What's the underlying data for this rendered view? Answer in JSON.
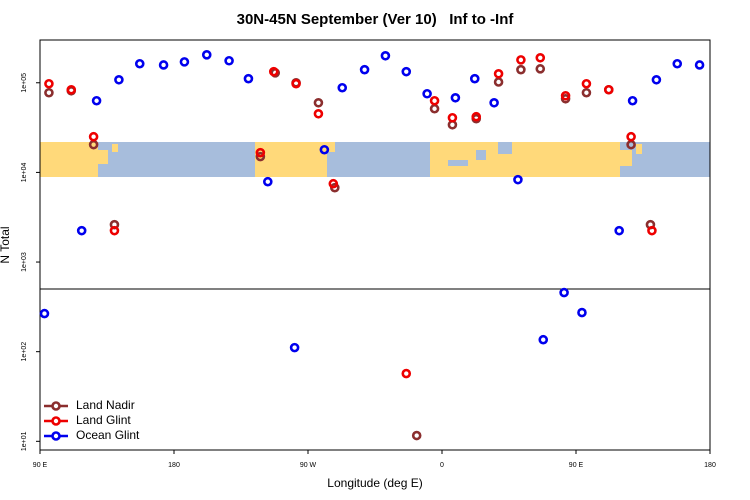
{
  "chart_data": {
    "type": "scatter",
    "title": "30N-45N September (Ver 10)   Inf to -Inf",
    "x_label": "Longitude (deg E)",
    "y_label": "N Total",
    "log_y": true,
    "legend": "lower left",
    "hline": 500,
    "xlim": [
      90,
      540
    ],
    "xticks": [
      {
        "value": 90,
        "label": "90 E"
      },
      {
        "value": 180,
        "label": "180"
      },
      {
        "value": 270,
        "label": "90 W"
      },
      {
        "value": 360,
        "label": "0"
      },
      {
        "value": 450,
        "label": "90 E"
      },
      {
        "value": 540,
        "label": "180"
      }
    ],
    "ylim": [
      8,
      300000
    ],
    "yticks": [
      {
        "value": 10,
        "label": "1e+01"
      },
      {
        "value": 100,
        "label": "1e+02"
      },
      {
        "value": 1000,
        "label": "1e+03"
      },
      {
        "value": 10000,
        "label": "1e+04"
      },
      {
        "value": 100000,
        "label": "1e+05"
      }
    ],
    "series": [
      {
        "name": "Land Nadir",
        "color": "#8b2e2e",
        "x": [
          96,
          111,
          126,
          140,
          238,
          248,
          262,
          277,
          288,
          343,
          355,
          367,
          383,
          398,
          413,
          426,
          443,
          457,
          472,
          487,
          500
        ],
        "values": [
          77400,
          81400,
          20400,
          2610,
          15000,
          129000,
          100000,
          59800,
          6750,
          11.6,
          51300,
          34000,
          39700,
          102000,
          140000,
          143000,
          66300,
          77400,
          83600,
          20400,
          2610
        ]
      },
      {
        "name": "Land Glint",
        "color": "#ee0000",
        "x": [
          96,
          111,
          126,
          140,
          238,
          247,
          262,
          277,
          287,
          336,
          355,
          367,
          383,
          398,
          413,
          426,
          443,
          457,
          472,
          487,
          501
        ],
        "values": [
          97500,
          83600,
          25000,
          2240,
          16600,
          133000,
          97500,
          45100,
          7480,
          57,
          63000,
          40700,
          41800,
          126000,
          180000,
          190000,
          71600,
          97500,
          83600,
          25000,
          2240
        ]
      },
      {
        "name": "Ocean Glint",
        "color": "#0000ee",
        "x": [
          93,
          118,
          128,
          143,
          157,
          173,
          187,
          202,
          217,
          230,
          243,
          261,
          281,
          293,
          308,
          322,
          336,
          350,
          369,
          382,
          395,
          411,
          428,
          442,
          454,
          479,
          488,
          504,
          518,
          533
        ],
        "values": [
          266,
          2240,
          63000,
          108000,
          163000,
          158000,
          171000,
          205000,
          176000,
          111000,
          7870,
          111,
          17900,
          88000,
          140000,
          200000,
          133000,
          75400,
          68000,
          111000,
          59800,
          8300,
          136,
          456,
          273,
          2240,
          63000,
          108000,
          163000,
          158000
        ]
      }
    ]
  }
}
